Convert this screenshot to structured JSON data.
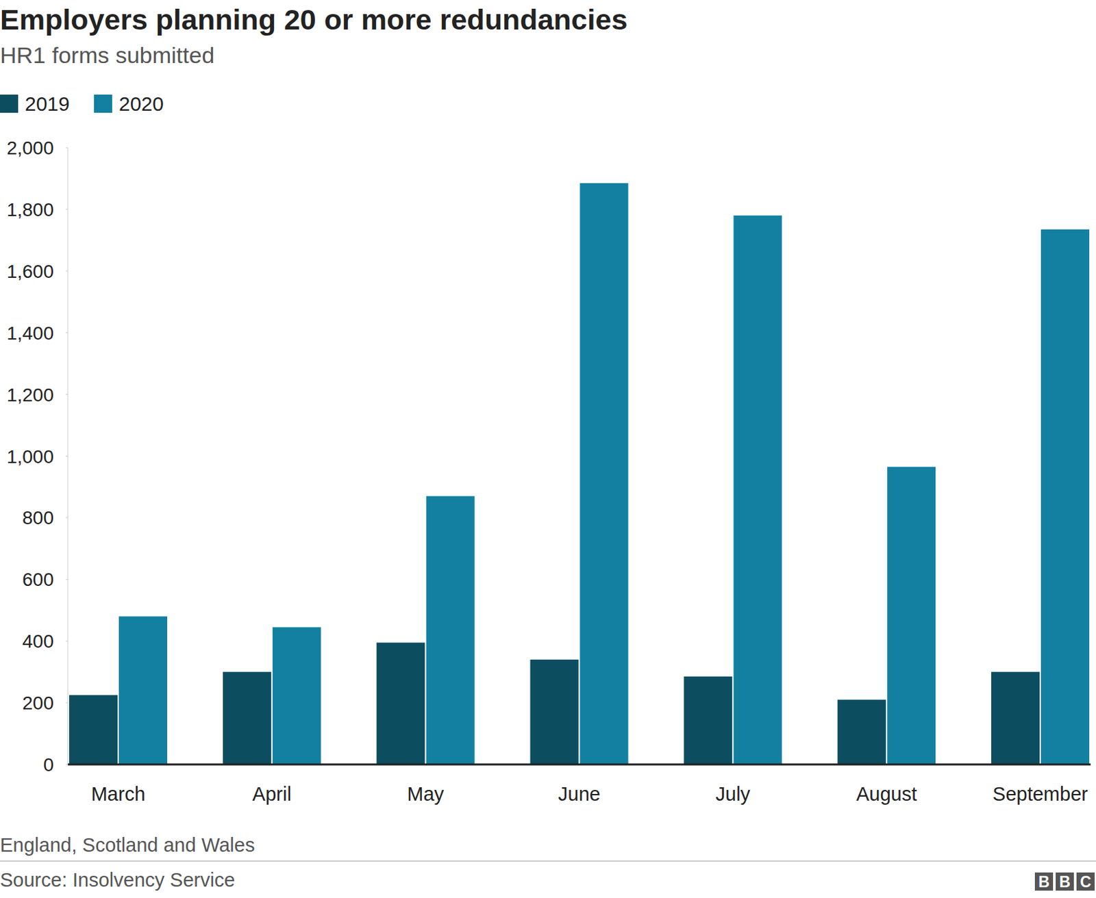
{
  "chart_data": {
    "type": "bar",
    "title": "Employers planning 20 or more redundancies",
    "subtitle": "HR1 forms submitted",
    "categories": [
      "March",
      "April",
      "May",
      "June",
      "July",
      "August",
      "September"
    ],
    "series": [
      {
        "name": "2019",
        "color": "#0c4d60",
        "values": [
          225,
          300,
          395,
          340,
          285,
          210,
          300
        ]
      },
      {
        "name": "2020",
        "color": "#1380a1",
        "values": [
          480,
          445,
          870,
          1885,
          1780,
          965,
          1735
        ]
      }
    ],
    "ylim": [
      0,
      2000
    ],
    "yticks": [
      0,
      200,
      400,
      600,
      800,
      {
        "value": 1000,
        "label": "1,000"
      },
      {
        "value": 1200,
        "label": "1,200"
      },
      {
        "value": 1400,
        "label": "1,400"
      },
      {
        "value": 1600,
        "label": "1,600"
      },
      {
        "value": 1800,
        "label": "1,800"
      },
      {
        "value": 2000,
        "label": "2,000"
      }
    ],
    "grid": false,
    "legend": "top-left",
    "note": "England, Scotland and Wales",
    "source": "Source: Insolvency Service",
    "logo": "BBC"
  }
}
